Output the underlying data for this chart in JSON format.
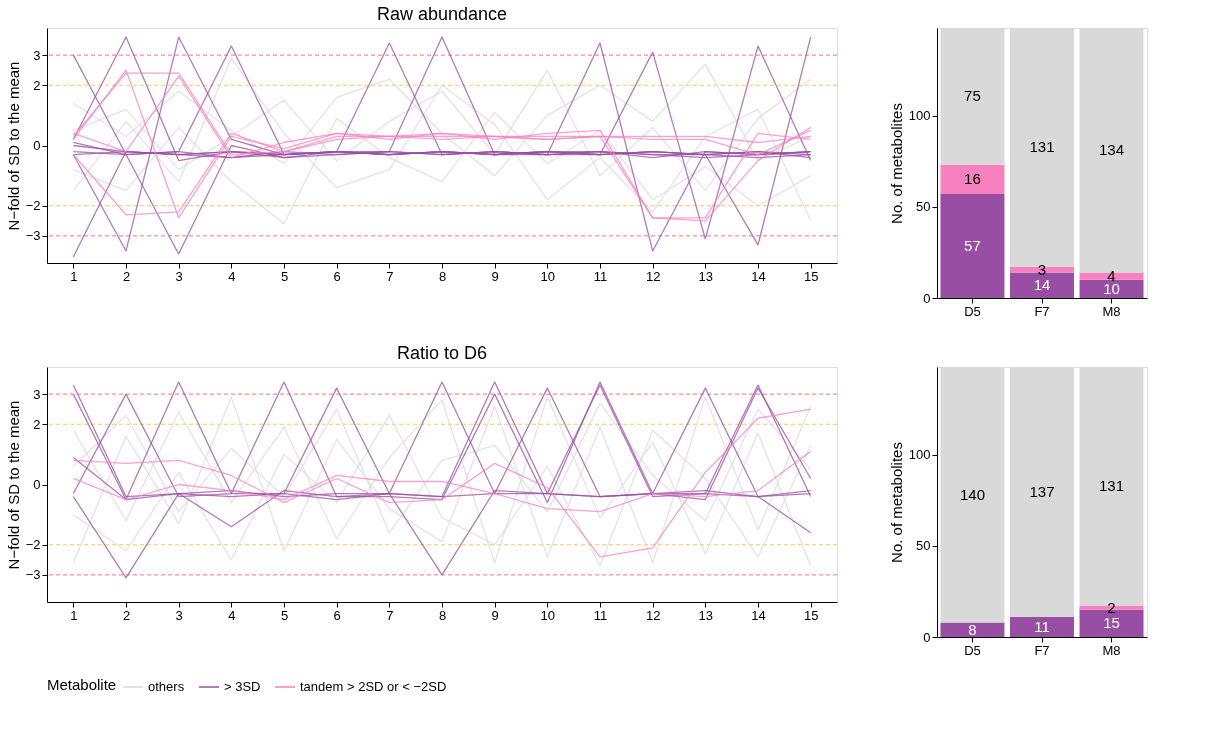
{
  "chart_data": [
    {
      "type": "line",
      "title": "Raw abundance",
      "ylabel": "N−fold of SD to the mean",
      "xlim": [
        0.5,
        15.5
      ],
      "xticks": [
        1,
        2,
        3,
        4,
        5,
        6,
        7,
        8,
        9,
        10,
        11,
        12,
        13,
        14,
        15
      ],
      "ylim": [
        -3.9,
        3.9
      ],
      "yticks": [
        -3,
        -2,
        0,
        2,
        3
      ],
      "legend": "bottom",
      "legend_title": "Metabolite",
      "ref_lines": [
        {
          "axis": "y",
          "value": 3,
          "color": "#ff4d4d",
          "line_style": "dashed"
        },
        {
          "axis": "y",
          "value": 2,
          "color": "#ffb52e",
          "line_style": "dashed"
        },
        {
          "axis": "y",
          "value": -2,
          "color": "#ffb52e",
          "line_style": "dashed"
        },
        {
          "axis": "y",
          "value": -3,
          "color": "#ff4d4d",
          "line_style": "dashed"
        }
      ],
      "series": [
        {
          "name": "others",
          "color": "#d9d9d9",
          "x": [
            1,
            2,
            3,
            4,
            5,
            6,
            7,
            8,
            9,
            10,
            11,
            12,
            13,
            14,
            15
          ],
          "values": [
            0.5,
            1.2,
            -0.8,
            0.3,
            1.5,
            -0.5,
            0.8,
            1.8,
            -0.3,
            2.5,
            -1.0,
            0.6,
            -1.5,
            0.9,
            2.2
          ]
        },
        {
          "color": "#d9d9d9",
          "x": [
            1,
            2,
            3,
            4,
            5,
            6,
            7,
            8,
            9,
            10,
            11,
            12,
            13,
            14,
            15
          ],
          "values": [
            -0.8,
            -1.5,
            0.6,
            -1.2,
            -2.6,
            0.9,
            -0.4,
            -1.2,
            1.1,
            -0.6,
            0.5,
            -1.8,
            -0.7,
            -2.0,
            -1.0
          ]
        },
        {
          "color": "#d9d9d9",
          "x": [
            1,
            2,
            3,
            4,
            5,
            6,
            7,
            8,
            9,
            10,
            11,
            12,
            13,
            14,
            15
          ],
          "values": [
            1.4,
            0.3,
            1.8,
            0.5,
            -0.6,
            1.6,
            2.2,
            0.4,
            -1.0,
            1.0,
            2.0,
            0.8,
            2.7,
            -0.5,
            0.3
          ]
        },
        {
          "color": "#d9d9d9",
          "x": [
            1,
            2,
            3,
            4,
            5,
            6,
            7,
            8,
            9,
            10,
            11,
            12,
            13,
            14,
            15
          ],
          "values": [
            -1.5,
            0.8,
            -1.2,
            2.9,
            0.4,
            -1.4,
            -0.8,
            2.0,
            0.7,
            -1.8,
            -0.4,
            -2.2,
            0.3,
            1.2,
            -2.5
          ]
        },
        {
          "name": "> 3SD",
          "color": "#984ea3",
          "x": [
            1,
            2,
            3,
            4,
            5,
            6,
            7,
            8,
            9,
            10,
            11,
            12,
            13,
            14,
            15
          ],
          "values": [
            0.2,
            3.6,
            -0.5,
            -0.2,
            -0.3,
            -0.2,
            -0.3,
            -0.2,
            -0.3,
            -0.2,
            -0.2,
            -0.3,
            -0.3,
            -0.4,
            -0.3
          ]
        },
        {
          "color": "#984ea3",
          "x": [
            1,
            2,
            3,
            4,
            5,
            6,
            7,
            8,
            9,
            10,
            11,
            12,
            13,
            14,
            15
          ],
          "values": [
            -0.3,
            -3.5,
            3.6,
            0.2,
            -0.3,
            -0.2,
            -0.2,
            -0.3,
            -0.2,
            -0.3,
            -0.3,
            -0.2,
            -0.3,
            -0.2,
            -0.4
          ]
        },
        {
          "color": "#984ea3",
          "x": [
            1,
            2,
            3,
            4,
            5,
            6,
            7,
            8,
            9,
            10,
            11,
            12,
            13,
            14,
            15
          ],
          "values": [
            0.1,
            -0.3,
            -3.6,
            0.0,
            -0.4,
            -0.2,
            -0.3,
            -0.2,
            -0.3,
            -0.3,
            -0.2,
            -0.4,
            -0.2,
            -0.3,
            -0.2
          ]
        },
        {
          "color": "#984ea3",
          "x": [
            1,
            2,
            3,
            4,
            5,
            6,
            7,
            8,
            9,
            10,
            11,
            12,
            13,
            14,
            15
          ],
          "values": [
            -0.2,
            -0.3,
            -0.2,
            -0.4,
            -0.3,
            -0.2,
            3.4,
            -0.3,
            -0.2,
            -0.3,
            -0.2,
            -0.3,
            -0.4,
            -0.3,
            -0.2
          ]
        },
        {
          "color": "#984ea3",
          "x": [
            1,
            2,
            3,
            4,
            5,
            6,
            7,
            8,
            9,
            10,
            11,
            12,
            13,
            14,
            15
          ],
          "values": [
            0.0,
            -0.2,
            -0.3,
            -0.2,
            -0.4,
            -0.3,
            -0.2,
            3.6,
            -0.3,
            -0.2,
            -0.3,
            -0.2,
            -0.3,
            -0.2,
            -0.3
          ]
        },
        {
          "color": "#984ea3",
          "x": [
            1,
            2,
            3,
            4,
            5,
            6,
            7,
            8,
            9,
            10,
            11,
            12,
            13,
            14,
            15
          ],
          "values": [
            -0.3,
            -0.2,
            -0.3,
            -0.4,
            -0.2,
            -0.3,
            -0.2,
            -0.3,
            -0.2,
            -0.3,
            3.4,
            -3.5,
            -0.2,
            -0.3,
            -0.2
          ]
        },
        {
          "color": "#984ea3",
          "x": [
            1,
            2,
            3,
            4,
            5,
            6,
            7,
            8,
            9,
            10,
            11,
            12,
            13,
            14,
            15
          ],
          "values": [
            3.0,
            -0.3,
            -0.2,
            3.3,
            -0.3,
            -0.2,
            -0.3,
            -0.2,
            -0.3,
            -0.2,
            -0.3,
            3.1,
            -3.1,
            3.3,
            -0.5
          ]
        },
        {
          "color": "#984ea3",
          "x": [
            1,
            2,
            3,
            4,
            5,
            6,
            7,
            8,
            9,
            10,
            11,
            12,
            13,
            14,
            15
          ],
          "values": [
            -3.7,
            -0.2,
            -0.3,
            -0.2,
            -0.3,
            -0.2,
            -0.3,
            -0.2,
            -0.3,
            -0.2,
            -0.3,
            -0.2,
            -0.3,
            -3.3,
            3.6
          ]
        },
        {
          "name": "tandem > 2SD or < −2SD",
          "color": "#f781bf",
          "x": [
            1,
            2,
            3,
            4,
            5,
            6,
            7,
            8,
            9,
            10,
            11,
            12,
            13,
            14,
            15
          ],
          "values": [
            0.3,
            2.4,
            2.4,
            -0.3,
            -0.2,
            0.3,
            0.3,
            0.3,
            0.3,
            0.3,
            0.3,
            0.3,
            0.3,
            0.1,
            0.3
          ]
        },
        {
          "color": "#f781bf",
          "x": [
            1,
            2,
            3,
            4,
            5,
            6,
            7,
            8,
            9,
            10,
            11,
            12,
            13,
            14,
            15
          ],
          "values": [
            -0.3,
            -2.3,
            -2.2,
            0.4,
            -0.2,
            0.2,
            0.3,
            0.2,
            0.3,
            0.2,
            0.3,
            -2.4,
            -2.5,
            -0.5,
            0.6
          ]
        },
        {
          "color": "#f781bf",
          "x": [
            1,
            2,
            3,
            4,
            5,
            6,
            7,
            8,
            9,
            10,
            11,
            12,
            13,
            14,
            15
          ],
          "values": [
            0.4,
            -0.2,
            2.3,
            -0.4,
            0.1,
            0.4,
            0.3,
            0.4,
            0.2,
            0.4,
            0.5,
            -2.4,
            -2.4,
            0.4,
            0.2
          ]
        },
        {
          "color": "#f781bf",
          "x": [
            1,
            2,
            3,
            4,
            5,
            6,
            7,
            8,
            9,
            10,
            11,
            12,
            13,
            14,
            15
          ],
          "values": [
            0.2,
            2.5,
            -2.4,
            0.3,
            -0.1,
            0.4,
            0.2,
            0.4,
            0.3,
            0.2,
            0.3,
            0.2,
            0.2,
            -0.3,
            0.5
          ]
        }
      ]
    },
    {
      "type": "bar",
      "stacked": true,
      "ylabel": "No. of metabolites",
      "categories": [
        "D5",
        "F7",
        "M8"
      ],
      "ylim": [
        0,
        148
      ],
      "yticks": [
        0,
        50,
        100
      ],
      "series": [
        {
          "name": "> 3SD",
          "color": "#984ea3",
          "values": [
            57,
            14,
            10
          ],
          "value_labels": [
            "57",
            "14",
            "10"
          ]
        },
        {
          "name": "tandem > 2SD or < −2SD",
          "color": "#f781bf",
          "values": [
            16,
            3,
            4
          ],
          "value_labels": [
            "16",
            "3",
            "4"
          ]
        },
        {
          "name": "others",
          "color": "#d9d9d9",
          "values": [
            75,
            131,
            134
          ],
          "value_labels": [
            "75",
            "131",
            "134"
          ]
        }
      ]
    },
    {
      "type": "line",
      "title": "Ratio to D6",
      "ylabel": "N−fold of SD to the mean",
      "xlim": [
        0.5,
        15.5
      ],
      "xticks": [
        1,
        2,
        3,
        4,
        5,
        6,
        7,
        8,
        9,
        10,
        11,
        12,
        13,
        14,
        15
      ],
      "ylim": [
        -3.9,
        3.9
      ],
      "yticks": [
        -3,
        -2,
        0,
        2,
        3
      ],
      "legend": false,
      "ref_lines": [
        {
          "axis": "y",
          "value": 3,
          "color": "#ff4d4d",
          "line_style": "dashed"
        },
        {
          "axis": "y",
          "value": 2,
          "color": "#ffb52e",
          "line_style": "dashed"
        },
        {
          "axis": "y",
          "value": -2,
          "color": "#ffb52e",
          "line_style": "dashed"
        },
        {
          "axis": "y",
          "value": -3,
          "color": "#ff4d4d",
          "line_style": "dashed"
        }
      ],
      "series": [
        {
          "name": "others",
          "color": "#d9d9d9",
          "x": [
            1,
            2,
            3,
            4,
            5,
            6,
            7,
            8,
            9,
            10,
            11,
            12,
            13,
            14,
            15
          ],
          "values": [
            1.8,
            -1.2,
            2.4,
            -0.6,
            1.9,
            -1.8,
            0.9,
            2.8,
            -2.6,
            2.9,
            -1.1,
            1.4,
            -2.3,
            1.7,
            -2.7
          ]
        },
        {
          "color": "#d9d9d9",
          "x": [
            1,
            2,
            3,
            4,
            5,
            6,
            7,
            8,
            9,
            10,
            11,
            12,
            13,
            14,
            15
          ],
          "values": [
            -2.6,
            1.6,
            -1.3,
            2.9,
            -2.2,
            1.5,
            -0.8,
            -1.9,
            2.6,
            -2.4,
            1.9,
            -2.6,
            2.9,
            -1.5,
            2.6
          ]
        },
        {
          "color": "#d9d9d9",
          "x": [
            1,
            2,
            3,
            4,
            5,
            6,
            7,
            8,
            9,
            10,
            11,
            12,
            13,
            14,
            15
          ],
          "values": [
            0.6,
            2.3,
            -0.9,
            1.2,
            -0.4,
            2.5,
            -1.6,
            0.8,
            1.3,
            -0.9,
            2.7,
            0.3,
            -1.2,
            2.5,
            0.5
          ]
        },
        {
          "color": "#d9d9d9",
          "x": [
            1,
            2,
            3,
            4,
            5,
            6,
            7,
            8,
            9,
            10,
            11,
            12,
            13,
            14,
            15
          ],
          "values": [
            -1.0,
            -2.2,
            0.4,
            -2.5,
            1.0,
            -0.6,
            2.3,
            -1.1,
            -2.0,
            0.6,
            -2.7,
            1.8,
            0.2,
            -2.4,
            1.3
          ]
        },
        {
          "name": "> 3SD",
          "color": "#984ea3",
          "x": [
            1,
            2,
            3,
            4,
            5,
            6,
            7,
            8,
            9,
            10,
            11,
            12,
            13,
            14,
            15
          ],
          "values": [
            3.3,
            -0.4,
            -0.3,
            -0.2,
            -0.4,
            -0.3,
            -0.3,
            3.4,
            -0.3,
            -0.3,
            -0.4,
            -0.3,
            -0.3,
            3.3,
            -0.4
          ]
        },
        {
          "color": "#984ea3",
          "x": [
            1,
            2,
            3,
            4,
            5,
            6,
            7,
            8,
            9,
            10,
            11,
            12,
            13,
            14,
            15
          ],
          "values": [
            3.0,
            -0.5,
            3.4,
            -0.3,
            -0.3,
            -0.5,
            -0.3,
            -0.4,
            -0.3,
            3.2,
            -0.4,
            -0.3,
            -0.2,
            -0.4,
            -0.3
          ]
        },
        {
          "color": "#984ea3",
          "x": [
            1,
            2,
            3,
            4,
            5,
            6,
            7,
            8,
            9,
            10,
            11,
            12,
            13,
            14,
            15
          ],
          "values": [
            -0.3,
            3.0,
            -0.4,
            -0.3,
            3.4,
            -0.4,
            -0.3,
            -3.0,
            -0.2,
            -0.3,
            3.3,
            -0.4,
            -0.3,
            -0.4,
            -0.2
          ]
        },
        {
          "color": "#984ea3",
          "x": [
            1,
            2,
            3,
            4,
            5,
            6,
            7,
            8,
            9,
            10,
            11,
            12,
            13,
            14,
            15
          ],
          "values": [
            -0.4,
            -3.1,
            -0.3,
            -0.4,
            -0.3,
            3.2,
            -0.3,
            -0.4,
            3.4,
            -0.3,
            -0.4,
            -0.3,
            3.2,
            -0.4,
            -1.6
          ]
        },
        {
          "color": "#984ea3",
          "x": [
            1,
            2,
            3,
            4,
            5,
            6,
            7,
            8,
            9,
            10,
            11,
            12,
            13,
            14,
            15
          ],
          "values": [
            0.9,
            -0.5,
            -0.3,
            -1.4,
            -0.2,
            -0.4,
            -0.4,
            -0.5,
            3.0,
            -0.6,
            3.4,
            -0.3,
            -0.5,
            3.2,
            0.2
          ]
        },
        {
          "name": "tandem > 2SD or < −2SD",
          "color": "#f781bf",
          "x": [
            1,
            2,
            3,
            4,
            5,
            6,
            7,
            8,
            9,
            10,
            11,
            12,
            13,
            14,
            15
          ],
          "values": [
            0.8,
            0.7,
            0.8,
            0.3,
            -0.6,
            0.2,
            -0.6,
            -0.5,
            0.7,
            -0.1,
            -2.4,
            -2.1,
            0.4,
            2.2,
            2.5
          ]
        },
        {
          "color": "#f781bf",
          "x": [
            1,
            2,
            3,
            4,
            5,
            6,
            7,
            8,
            9,
            10,
            11,
            12,
            13,
            14,
            15
          ],
          "values": [
            0.2,
            -0.5,
            0.0,
            -0.2,
            -0.5,
            0.3,
            0.1,
            0.1,
            -0.3,
            -0.8,
            -0.9,
            -0.3,
            -0.4,
            -0.2,
            1.1
          ]
        }
      ]
    },
    {
      "type": "bar",
      "stacked": true,
      "ylabel": "No. of metabolites",
      "categories": [
        "D5",
        "F7",
        "M8"
      ],
      "ylim": [
        0,
        148
      ],
      "yticks": [
        0,
        50,
        100
      ],
      "series": [
        {
          "name": "> 3SD",
          "color": "#984ea3",
          "values": [
            8,
            11,
            15
          ],
          "value_labels": [
            "8",
            "11",
            "15"
          ]
        },
        {
          "name": "tandem > 2SD or < −2SD",
          "color": "#f781bf",
          "values": [
            0,
            0,
            2
          ],
          "value_labels": [
            null,
            null,
            "2"
          ]
        },
        {
          "name": "others",
          "color": "#d9d9d9",
          "values": [
            140,
            137,
            131
          ],
          "value_labels": [
            "140",
            "137",
            "131"
          ]
        }
      ]
    }
  ]
}
